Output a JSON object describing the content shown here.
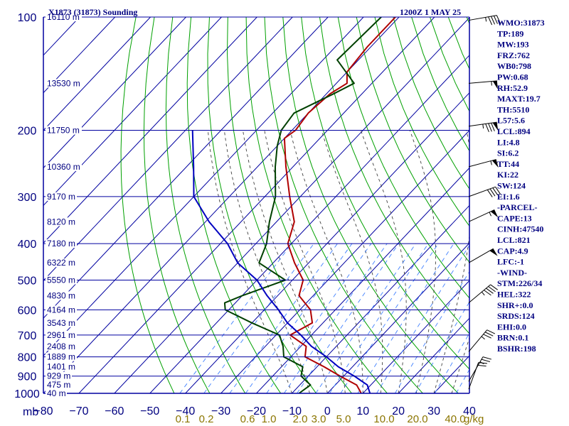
{
  "title_left": "X1873 (31873) Sounding",
  "title_right": "1200Z  1 MAY 25",
  "pressure_unit": "mb",
  "mixing_unit": "g/kg",
  "indices": [
    "WMO:31873",
    "TP:189",
    "MW:193",
    "FRZ:762",
    "WB0:798",
    "PW:0.68",
    "RH:52.9",
    "MAXT:19.7",
    "TH:5510",
    "L57:5.6",
    "LCL:894",
    "LI:4.8",
    "SI:6.2",
    "TT:44",
    "KI:22",
    "SW:124",
    "EI:1.6",
    "-PARCEL-",
    "CAPE:13",
    "CINH:47540",
    "LCL:821",
    "CAP:4.9",
    "LFC:-1",
    "-WIND-",
    "STM:226/34",
    "HEL:322",
    "SHR+:0.0",
    "SRDS:124",
    "EHI:0.0",
    "BRN:0.1",
    "BSHR:198"
  ],
  "colors": {
    "frame": "#0000a0",
    "isotherm": "#0000a0",
    "dry_adiabat": "#00a000",
    "moist_adiabat": "#404040",
    "mixing_ratio": "#4080ff",
    "temperature": "#b00000",
    "dewpoint": "#004000",
    "parcel": "#0000c0"
  },
  "chart_data": {
    "type": "skew-t",
    "pressure_axis": {
      "scale": "log",
      "range": [
        1000,
        100
      ],
      "ticks": [
        100,
        200,
        300,
        400,
        500,
        600,
        700,
        800,
        900,
        1000
      ]
    },
    "temperature_axis": {
      "range": [
        -80,
        40
      ],
      "ticks": [
        -80,
        -70,
        -60,
        -50,
        -40,
        -30,
        -20,
        -10,
        0,
        10,
        20,
        30,
        40
      ]
    },
    "mixing_ratio_labels": [
      "0.1",
      "0.2",
      "0.6",
      "1.0",
      "2.0",
      "3.0",
      "5.0",
      "10.0",
      "20.0",
      "40.0"
    ],
    "height_labels": [
      {
        "p": 100,
        "h": "16110 m"
      },
      {
        "p": 150,
        "h": "13530 m"
      },
      {
        "p": 200,
        "h": "11750 m"
      },
      {
        "p": 250,
        "h": "10360 m"
      },
      {
        "p": 300,
        "h": "9170 m"
      },
      {
        "p": 350,
        "h": "8120 m"
      },
      {
        "p": 400,
        "h": "7180 m"
      },
      {
        "p": 450,
        "h": "6322 m"
      },
      {
        "p": 500,
        "h": "5550 m"
      },
      {
        "p": 550,
        "h": "4830 m"
      },
      {
        "p": 600,
        "h": "4164 m"
      },
      {
        "p": 650,
        "h": "3543 m"
      },
      {
        "p": 700,
        "h": "2961 m"
      },
      {
        "p": 750,
        "h": "2408 m"
      },
      {
        "p": 800,
        "h": "1889 m"
      },
      {
        "p": 850,
        "h": "1401 m"
      },
      {
        "p": 900,
        "h": "929 m"
      },
      {
        "p": 950,
        "h": "475 m"
      },
      {
        "p": 1000,
        "h": "40 m"
      }
    ],
    "series": [
      {
        "name": "temperature",
        "points": [
          [
            1000,
            9.5
          ],
          [
            985,
            8.5
          ],
          [
            950,
            6
          ],
          [
            900,
            -1
          ],
          [
            850,
            -8
          ],
          [
            800,
            -16
          ],
          [
            750,
            -18.5
          ],
          [
            700,
            -26
          ],
          [
            650,
            -23
          ],
          [
            600,
            -27
          ],
          [
            550,
            -34
          ],
          [
            500,
            -37
          ],
          [
            450,
            -44
          ],
          [
            400,
            -51
          ],
          [
            350,
            -55
          ],
          [
            300,
            -63
          ],
          [
            250,
            -72
          ],
          [
            210,
            -80
          ],
          [
            200,
            -79
          ],
          [
            180,
            -80
          ],
          [
            160,
            -79
          ],
          [
            150,
            -77
          ],
          [
            140,
            -80
          ],
          [
            120,
            -81
          ],
          [
            100,
            -81
          ]
        ]
      },
      {
        "name": "dewpoint",
        "points": [
          [
            1000,
            -8
          ],
          [
            950,
            -7
          ],
          [
            900,
            -12
          ],
          [
            850,
            -14
          ],
          [
            800,
            -22
          ],
          [
            750,
            -25
          ],
          [
            700,
            -29
          ],
          [
            650,
            -40
          ],
          [
            600,
            -51
          ],
          [
            575,
            -53
          ],
          [
            550,
            -50
          ],
          [
            500,
            -42
          ],
          [
            450,
            -54
          ],
          [
            400,
            -57
          ],
          [
            350,
            -62
          ],
          [
            300,
            -67
          ],
          [
            250,
            -75
          ],
          [
            220,
            -80
          ],
          [
            200,
            -83
          ],
          [
            180,
            -84
          ],
          [
            160,
            -78
          ],
          [
            150,
            -75
          ],
          [
            130,
            -86
          ],
          [
            100,
            -85
          ]
        ]
      },
      {
        "name": "parcel",
        "points": [
          [
            1000,
            12
          ],
          [
            950,
            9
          ],
          [
            900,
            3
          ],
          [
            850,
            -4
          ],
          [
            800,
            -10
          ],
          [
            750,
            -17
          ],
          [
            700,
            -23
          ],
          [
            650,
            -30
          ],
          [
            600,
            -36
          ],
          [
            550,
            -43
          ],
          [
            500,
            -50
          ],
          [
            450,
            -60
          ],
          [
            400,
            -68
          ],
          [
            350,
            -79
          ],
          [
            300,
            -90
          ],
          [
            250,
            -98
          ],
          [
            200,
            -108
          ]
        ]
      }
    ],
    "wind_barbs": [
      {
        "p": 102,
        "dir": 260,
        "kt": 45
      },
      {
        "p": 150,
        "dir": 265,
        "kt": 55
      },
      {
        "p": 195,
        "dir": 262,
        "kt": 85
      },
      {
        "p": 250,
        "dir": 255,
        "kt": 55
      },
      {
        "p": 300,
        "dir": 250,
        "kt": 40
      },
      {
        "p": 350,
        "dir": 245,
        "kt": 55
      },
      {
        "p": 450,
        "dir": 240,
        "kt": 50
      },
      {
        "p": 575,
        "dir": 230,
        "kt": 45
      },
      {
        "p": 775,
        "dir": 220,
        "kt": 35
      },
      {
        "p": 930,
        "dir": 210,
        "kt": 25
      },
      {
        "p": 975,
        "dir": 200,
        "kt": 20
      }
    ]
  }
}
